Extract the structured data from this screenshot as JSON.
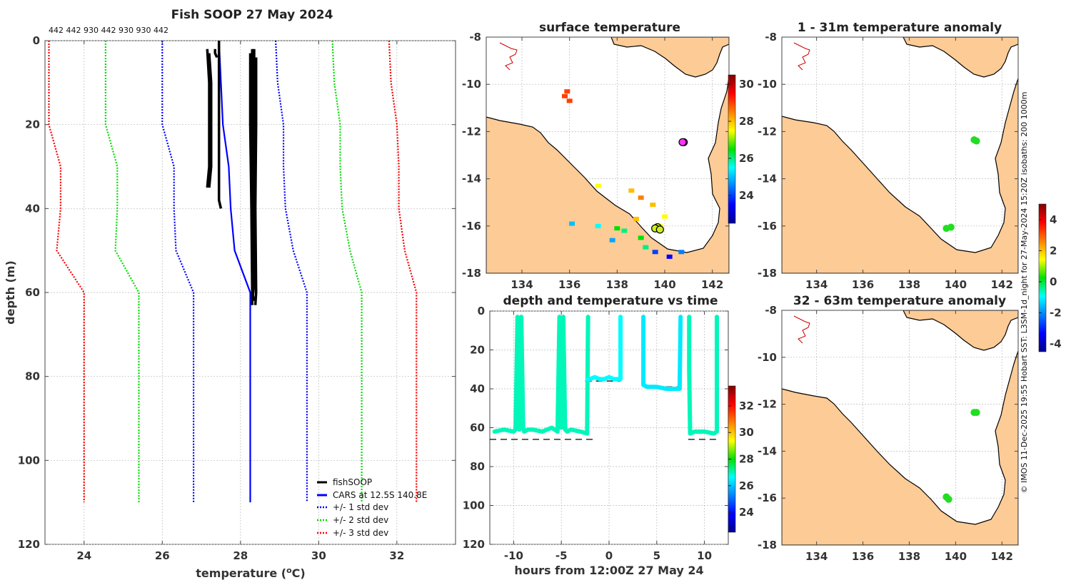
{
  "figure": {
    "credit": "© IMOS 11-Dec-2025 19:55 Hobart SST: L3SM-1d_night for 27-May-2024 15:20Z isobaths: 200  1000m"
  },
  "chart_data": [
    {
      "id": "profile",
      "type": "line",
      "title": "Fish SOOP 27 May 2024",
      "xlabel": "temperature (°C)",
      "xlabel_parts": [
        "temperature (",
        "o",
        "C)"
      ],
      "ylabel": "depth (m)",
      "xlim": [
        23,
        33.5
      ],
      "ylim": [
        120,
        0
      ],
      "xticks": [
        24,
        26,
        28,
        30,
        32
      ],
      "yticks": [
        0,
        20,
        40,
        60,
        80,
        100,
        120
      ],
      "top_annotation": "442 442 930 442 930 930 442",
      "legend": [
        "fishSOOP",
        "CARS at 12.5S 140.8E",
        "+/- 1 std dev",
        "+/- 2 std dev",
        "+/- 3 std dev"
      ],
      "cars": {
        "depth": [
          0,
          10,
          20,
          30,
          40,
          50,
          60,
          62,
          110
        ],
        "temp": [
          27.45,
          27.5,
          27.55,
          27.7,
          27.75,
          27.85,
          28.25,
          28.25,
          28.25
        ]
      },
      "std_lines": [
        {
          "name": "-3",
          "color": "#ff0000",
          "depth": [
            0,
            10,
            20,
            30,
            40,
            50,
            60,
            110
          ],
          "temp": [
            23.1,
            23.1,
            23.1,
            23.4,
            23.4,
            23.3,
            24.0,
            24.0
          ]
        },
        {
          "name": "-2",
          "color": "#00dd00",
          "depth": [
            0,
            10,
            20,
            30,
            40,
            50,
            60,
            110
          ],
          "temp": [
            24.55,
            24.55,
            24.55,
            24.85,
            24.85,
            24.8,
            25.4,
            25.4
          ]
        },
        {
          "name": "-1",
          "color": "#0000ff",
          "depth": [
            0,
            10,
            20,
            30,
            40,
            50,
            60,
            110
          ],
          "temp": [
            26.0,
            26.0,
            26.0,
            26.3,
            26.3,
            26.35,
            26.8,
            26.8
          ]
        },
        {
          "name": "+1",
          "color": "#0000ff",
          "depth": [
            0,
            10,
            20,
            30,
            40,
            50,
            60,
            110
          ],
          "temp": [
            28.9,
            28.95,
            29.1,
            29.1,
            29.15,
            29.35,
            29.7,
            29.7
          ]
        },
        {
          "name": "+2",
          "color": "#00dd00",
          "depth": [
            0,
            10,
            20,
            30,
            40,
            50,
            60,
            110
          ],
          "temp": [
            30.35,
            30.4,
            30.55,
            30.55,
            30.6,
            30.8,
            31.1,
            31.1
          ]
        },
        {
          "name": "+3",
          "color": "#ff0000",
          "depth": [
            0,
            10,
            20,
            30,
            40,
            50,
            60,
            110
          ],
          "temp": [
            31.8,
            31.85,
            32.0,
            32.05,
            32.05,
            32.2,
            32.5,
            32.5
          ]
        }
      ],
      "fish_profiles": [
        {
          "depth": [
            2,
            10,
            20,
            30,
            35
          ],
          "temp": [
            27.15,
            27.2,
            27.2,
            27.2,
            27.15
          ]
        },
        {
          "depth": [
            3,
            10,
            20,
            30,
            35
          ],
          "temp": [
            27.2,
            27.25,
            27.25,
            27.25,
            27.2
          ]
        },
        {
          "depth": [
            2,
            3,
            4
          ],
          "temp": [
            27.35,
            27.35,
            27.4
          ]
        },
        {
          "depth": [
            0,
            10,
            20,
            30,
            38,
            40
          ],
          "temp": [
            27.45,
            27.45,
            27.45,
            27.45,
            27.45,
            27.5
          ]
        },
        {
          "depth": [
            2,
            20,
            40,
            60,
            63
          ],
          "temp": [
            28.3,
            28.3,
            28.3,
            28.3,
            28.3
          ]
        },
        {
          "depth": [
            3,
            20,
            40,
            60,
            62
          ],
          "temp": [
            28.25,
            28.25,
            28.28,
            28.3,
            28.35
          ]
        },
        {
          "depth": [
            2,
            20,
            40,
            58,
            62
          ],
          "temp": [
            28.35,
            28.35,
            28.35,
            28.35,
            28.3
          ]
        },
        {
          "depth": [
            4,
            20,
            40,
            60,
            63
          ],
          "temp": [
            28.4,
            28.4,
            28.38,
            28.4,
            28.38
          ]
        }
      ]
    },
    {
      "id": "surface",
      "type": "scatter",
      "title": "surface temperature",
      "xlim": [
        132.5,
        142.7
      ],
      "ylim": [
        -18,
        -8
      ],
      "xticks": [
        134,
        136,
        138,
        140,
        142
      ],
      "yticks": [
        -8,
        -10,
        -12,
        -14,
        -16,
        -18
      ],
      "colorbar": {
        "range": [
          22.5,
          30.5
        ],
        "ticks": [
          24,
          26,
          28,
          30
        ]
      },
      "stations": [
        [
          140.8,
          -12.45
        ],
        [
          140.75,
          -12.45
        ],
        [
          139.7,
          -16.05
        ],
        [
          139.6,
          -16.1
        ],
        [
          139.8,
          -16.15
        ]
      ],
      "sst": [
        [
          135.9,
          -10.3,
          29.0
        ],
        [
          135.8,
          -10.5,
          29.0
        ],
        [
          136.0,
          -10.7,
          29.0
        ],
        [
          137.2,
          -14.3,
          27.5
        ],
        [
          138.6,
          -14.5,
          28.0
        ],
        [
          139.0,
          -14.8,
          28.5
        ],
        [
          139.5,
          -15.1,
          28.0
        ],
        [
          140.0,
          -15.6,
          27.5
        ],
        [
          136.1,
          -15.9,
          25.0
        ],
        [
          137.2,
          -16.0,
          25.5
        ],
        [
          138.3,
          -16.2,
          26.0
        ],
        [
          137.8,
          -16.6,
          24.8
        ],
        [
          139.0,
          -16.5,
          26.5
        ],
        [
          139.2,
          -16.9,
          26.0
        ],
        [
          139.6,
          -17.1,
          24.0
        ],
        [
          140.2,
          -17.3,
          23.5
        ],
        [
          140.7,
          -17.1,
          24.5
        ],
        [
          139.8,
          -16.0,
          27.5
        ],
        [
          138.0,
          -16.1,
          26.5
        ],
        [
          138.8,
          -15.7,
          28.0
        ]
      ]
    },
    {
      "id": "depth_time",
      "type": "scatter",
      "title": "depth and temperature vs time",
      "xlabel": "hours from 12:00Z 27 May 24",
      "xlim": [
        -12.5,
        12.5
      ],
      "ylim": [
        120,
        0
      ],
      "xticks": [
        -10,
        -5,
        0,
        5,
        10
      ],
      "yticks": [
        0,
        20,
        40,
        60,
        80,
        100,
        120
      ],
      "colorbar": {
        "range": [
          22.5,
          33.5
        ],
        "ticks": [
          24,
          26,
          28,
          30,
          32
        ]
      },
      "bottom_segments": [
        [
          -12.5,
          -1.5,
          66
        ],
        [
          -2.5,
          1.2,
          36
        ],
        [
          3.7,
          7.5,
          39
        ],
        [
          8.3,
          11.5,
          66
        ]
      ],
      "tracks": [
        {
          "t": [
            -12.0,
            -11.0,
            -10.0,
            -9.8,
            -9.6,
            -9.4,
            -9.2,
            -9.0,
            -8.9,
            -8.5,
            -8.0,
            -7.0,
            -6.0,
            -5.4,
            -5.2,
            -5.0,
            -4.8,
            -4.6,
            -4.4,
            -4.0,
            -3.0,
            -2.3,
            -2.2
          ],
          "d": [
            62,
            61,
            62,
            61,
            3,
            61,
            3,
            60,
            62,
            61,
            61,
            62,
            60,
            62,
            3,
            60,
            3,
            61,
            62,
            61,
            62,
            63,
            3
          ],
          "temp": 27.0
        },
        {
          "t": [
            -2.2,
            -2.0,
            -1.5,
            -1.0,
            -0.5,
            0.0,
            0.5,
            1.0,
            1.2,
            1.2
          ],
          "d": [
            35,
            35,
            34,
            35,
            35,
            34,
            35,
            35,
            35,
            3
          ],
          "temp": 26.6
        },
        {
          "t": [
            3.6,
            3.6,
            4.0,
            5.0,
            6.0,
            7.0,
            7.4,
            7.5
          ],
          "d": [
            3,
            38,
            39,
            39,
            40,
            40,
            40,
            3
          ],
          "temp": 26.4
        },
        {
          "t": [
            8.4,
            8.4,
            8.5,
            9.0,
            10.0,
            11.0,
            11.3,
            11.3
          ],
          "d": [
            3,
            30,
            63,
            62,
            62,
            63,
            62,
            3
          ],
          "temp": 27.0
        }
      ]
    },
    {
      "id": "anom1",
      "type": "scatter",
      "title": "1 - 31m temperature anomaly",
      "xlim": [
        132.5,
        142.7
      ],
      "ylim": [
        -18,
        -8
      ],
      "xticks": [
        134,
        136,
        138,
        140,
        142
      ],
      "yticks": [
        -8,
        -10,
        -12,
        -14,
        -16,
        -18
      ],
      "colorbar": {
        "range": [
          -4.5,
          5
        ],
        "ticks": [
          -4,
          -2,
          0,
          2,
          4
        ]
      },
      "stations": [
        [
          140.8,
          -12.35
        ],
        [
          140.9,
          -12.4
        ],
        [
          139.6,
          -16.1
        ],
        [
          139.8,
          -16.05
        ]
      ]
    },
    {
      "id": "anom2",
      "type": "scatter",
      "title": "32 - 63m temperature anomaly",
      "xlim": [
        132.5,
        142.7
      ],
      "ylim": [
        -18,
        -8
      ],
      "xticks": [
        134,
        136,
        138,
        140,
        142
      ],
      "yticks": [
        -8,
        -10,
        -12,
        -14,
        -16,
        -18
      ],
      "stations": [
        [
          140.8,
          -12.35
        ],
        [
          140.9,
          -12.35
        ],
        [
          139.6,
          -15.95
        ],
        [
          139.7,
          -16.05
        ]
      ]
    }
  ]
}
